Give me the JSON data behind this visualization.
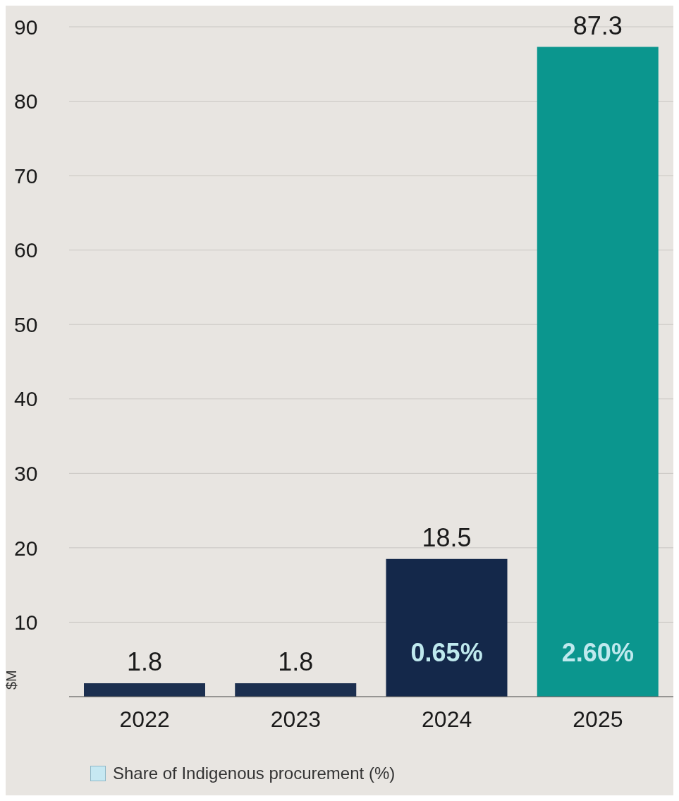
{
  "chart_data": {
    "type": "bar",
    "ylabel": "$M",
    "categories": [
      "2022",
      "2023",
      "2024",
      "2025"
    ],
    "values": [
      1.8,
      1.8,
      18.5,
      87.3
    ],
    "colors": [
      "#1c2f4f",
      "#1c2f4f",
      "#14284a",
      "#0b968e"
    ],
    "ylim": [
      0,
      90
    ],
    "yticks": [
      10,
      20,
      30,
      40,
      50,
      60,
      70,
      80,
      90
    ],
    "grid": "y",
    "data_labels": true,
    "annotations": [
      "0.65%",
      "2.60%",
      "Share of Indigenous procurement (%)"
    ]
  }
}
